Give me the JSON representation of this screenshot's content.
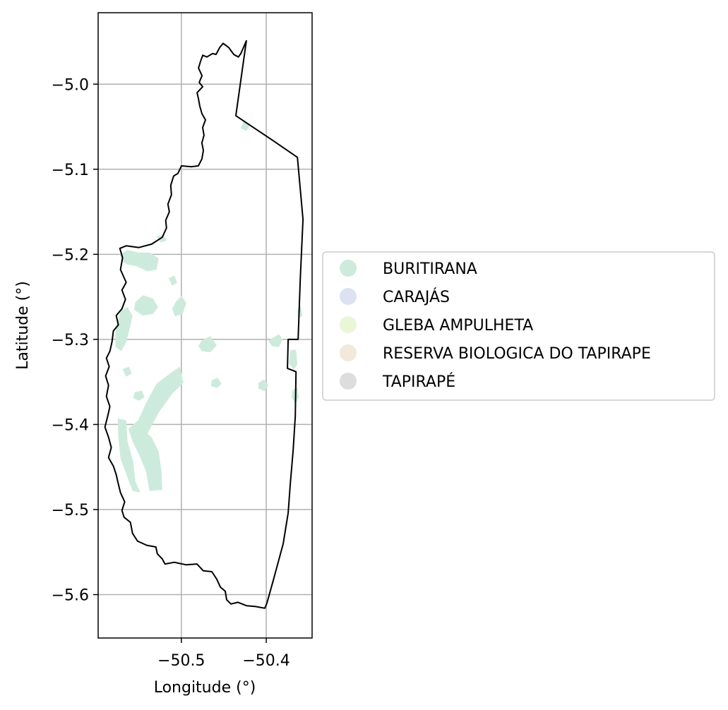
{
  "chart_data": {
    "type": "map",
    "xlabel": "Longitude (°)",
    "ylabel": "Latitude (°)",
    "xlim": [
      -50.598,
      -50.346
    ],
    "ylim": [
      -5.651,
      -4.916
    ],
    "xticks": [
      {
        "value": -50.5,
        "label": "−50.5"
      },
      {
        "value": -50.4,
        "label": "−50.4"
      }
    ],
    "yticks": [
      {
        "value": -5.0,
        "label": "−5.0"
      },
      {
        "value": -5.1,
        "label": "−5.1"
      },
      {
        "value": -5.2,
        "label": "−5.2"
      },
      {
        "value": -5.3,
        "label": "−5.3"
      },
      {
        "value": -5.4,
        "label": "−5.4"
      },
      {
        "value": -5.5,
        "label": "−5.5"
      },
      {
        "value": -5.6,
        "label": "−5.6"
      }
    ],
    "grid": true,
    "legend_position": "right",
    "legend": [
      {
        "label": "BURITIRANA",
        "color": "#cdebdc"
      },
      {
        "label": "CARAJÁS",
        "color": "#dde2f2"
      },
      {
        "label": "GLEBA AMPULHETA",
        "color": "#e9f7d8"
      },
      {
        "label": "RESERVA BIOLOGICA DO TAPIRAPE",
        "color": "#f3e9da"
      },
      {
        "label": "TAPIRAPÉ",
        "color": "#dddddd"
      }
    ],
    "boundary": [
      [
        -50.4234,
        -4.949
      ],
      [
        -50.4299,
        -4.964
      ],
      [
        -50.4328,
        -4.968
      ],
      [
        -50.4383,
        -4.965
      ],
      [
        -50.4441,
        -4.957
      ],
      [
        -50.4508,
        -4.952
      ],
      [
        -50.4549,
        -4.957
      ],
      [
        -50.4591,
        -4.965
      ],
      [
        -50.4632,
        -4.964
      ],
      [
        -50.4699,
        -4.968
      ],
      [
        -50.4748,
        -4.966
      ],
      [
        -50.4773,
        -4.973
      ],
      [
        -50.4798,
        -4.981
      ],
      [
        -50.4757,
        -4.99
      ],
      [
        -50.479,
        -4.998
      ],
      [
        -50.4749,
        -5.003
      ],
      [
        -50.4815,
        -5.01
      ],
      [
        -50.4799,
        -5.017
      ],
      [
        -50.4782,
        -5.026
      ],
      [
        -50.4757,
        -5.035
      ],
      [
        -50.4716,
        -5.042
      ],
      [
        -50.4749,
        -5.051
      ],
      [
        -50.4733,
        -5.06
      ],
      [
        -50.4758,
        -5.069
      ],
      [
        -50.4741,
        -5.078
      ],
      [
        -50.4758,
        -5.088
      ],
      [
        -50.48,
        -5.096
      ],
      [
        -50.4883,
        -5.097
      ],
      [
        -50.4999,
        -5.096
      ],
      [
        -50.5041,
        -5.105
      ],
      [
        -50.5091,
        -5.108
      ],
      [
        -50.5125,
        -5.119
      ],
      [
        -50.5117,
        -5.13
      ],
      [
        -50.5158,
        -5.141
      ],
      [
        -50.5142,
        -5.15
      ],
      [
        -50.5184,
        -5.16
      ],
      [
        -50.5175,
        -5.169
      ],
      [
        -50.5225,
        -5.18
      ],
      [
        -50.535,
        -5.188
      ],
      [
        -50.55,
        -5.192
      ],
      [
        -50.565,
        -5.19
      ],
      [
        -50.5725,
        -5.193
      ],
      [
        -50.5692,
        -5.204
      ],
      [
        -50.5717,
        -5.218
      ],
      [
        -50.565,
        -5.233
      ],
      [
        -50.57,
        -5.242
      ],
      [
        -50.5658,
        -5.253
      ],
      [
        -50.57,
        -5.264
      ],
      [
        -50.5767,
        -5.272
      ],
      [
        -50.5742,
        -5.283
      ],
      [
        -50.58,
        -5.29
      ],
      [
        -50.5817,
        -5.303
      ],
      [
        -50.5842,
        -5.314
      ],
      [
        -50.5883,
        -5.322
      ],
      [
        -50.585,
        -5.332
      ],
      [
        -50.5892,
        -5.343
      ],
      [
        -50.5858,
        -5.354
      ],
      [
        -50.5883,
        -5.367
      ],
      [
        -50.5842,
        -5.379
      ],
      [
        -50.5867,
        -5.39
      ],
      [
        -50.59,
        -5.403
      ],
      [
        -50.5858,
        -5.415
      ],
      [
        -50.5825,
        -5.427
      ],
      [
        -50.5858,
        -5.439
      ],
      [
        -50.58,
        -5.449
      ],
      [
        -50.5767,
        -5.459
      ],
      [
        -50.5742,
        -5.47
      ],
      [
        -50.5717,
        -5.48
      ],
      [
        -50.5667,
        -5.491
      ],
      [
        -50.57,
        -5.501
      ],
      [
        -50.5675,
        -5.509
      ],
      [
        -50.56,
        -5.515
      ],
      [
        -50.5575,
        -5.528
      ],
      [
        -50.5517,
        -5.537
      ],
      [
        -50.5408,
        -5.542
      ],
      [
        -50.53,
        -5.544
      ],
      [
        -50.5283,
        -5.552
      ],
      [
        -50.5225,
        -5.558
      ],
      [
        -50.5192,
        -5.564
      ],
      [
        -50.5083,
        -5.562
      ],
      [
        -50.4942,
        -5.565
      ],
      [
        -50.4817,
        -5.564
      ],
      [
        -50.4741,
        -5.572
      ],
      [
        -50.4641,
        -5.573
      ],
      [
        -50.4582,
        -5.582
      ],
      [
        -50.4541,
        -5.591
      ],
      [
        -50.4483,
        -5.596
      ],
      [
        -50.4466,
        -5.606
      ],
      [
        -50.4416,
        -5.611
      ],
      [
        -50.4333,
        -5.609
      ],
      [
        -50.4233,
        -5.613
      ],
      [
        -50.4125,
        -5.614
      ],
      [
        -50.4017,
        -5.616
      ],
      [
        -50.3992,
        -5.61
      ],
      [
        -50.3908,
        -5.58
      ],
      [
        -50.38,
        -5.54
      ],
      [
        -50.3742,
        -5.504
      ],
      [
        -50.3717,
        -5.47
      ],
      [
        -50.3683,
        -5.43
      ],
      [
        -50.3658,
        -5.39
      ],
      [
        -50.365,
        -5.338
      ],
      [
        -50.375,
        -5.334
      ],
      [
        -50.3742,
        -5.3
      ],
      [
        -50.3625,
        -5.3
      ],
      [
        -50.36,
        -5.23
      ],
      [
        -50.3567,
        -5.159
      ],
      [
        -50.3633,
        -5.086
      ],
      [
        -50.3925,
        -5.066
      ],
      [
        -50.4225,
        -5.046
      ],
      [
        -50.4358,
        -5.037
      ],
      [
        -50.4234,
        -4.949
      ]
    ],
    "areas": [
      [
        [
          -50.5625,
          -5.405
        ],
        [
          -50.5508,
          -5.395
        ],
        [
          -50.5417,
          -5.375
        ],
        [
          -50.5292,
          -5.352
        ],
        [
          -50.5133,
          -5.34
        ],
        [
          -50.5017,
          -5.332
        ],
        [
          -50.4975,
          -5.351
        ],
        [
          -50.5108,
          -5.364
        ],
        [
          -50.5267,
          -5.386
        ],
        [
          -50.54,
          -5.411
        ],
        [
          -50.535,
          -5.415
        ],
        [
          -50.5267,
          -5.432
        ],
        [
          -50.5233,
          -5.455
        ],
        [
          -50.5225,
          -5.477
        ],
        [
          -50.5375,
          -5.478
        ],
        [
          -50.5417,
          -5.455
        ],
        [
          -50.55,
          -5.435
        ],
        [
          -50.5567,
          -5.422
        ]
      ],
      [
        [
          -50.575,
          -5.393
        ],
        [
          -50.565,
          -5.395
        ],
        [
          -50.5633,
          -5.42
        ],
        [
          -50.5567,
          -5.444
        ],
        [
          -50.5542,
          -5.467
        ],
        [
          -50.5483,
          -5.48
        ],
        [
          -50.5575,
          -5.478
        ],
        [
          -50.565,
          -5.458
        ],
        [
          -50.5717,
          -5.44
        ],
        [
          -50.5742,
          -5.415
        ]
      ],
      [
        [
          -50.5717,
          -5.266
        ],
        [
          -50.5633,
          -5.262
        ],
        [
          -50.5575,
          -5.272
        ],
        [
          -50.56,
          -5.284
        ],
        [
          -50.565,
          -5.303
        ],
        [
          -50.5708,
          -5.314
        ],
        [
          -50.5775,
          -5.309
        ],
        [
          -50.5775,
          -5.29
        ]
      ],
      [
        [
          -50.5725,
          -5.2
        ],
        [
          -50.5633,
          -5.195
        ],
        [
          -50.55,
          -5.198
        ],
        [
          -50.5367,
          -5.198
        ],
        [
          -50.5267,
          -5.205
        ],
        [
          -50.5292,
          -5.218
        ],
        [
          -50.54,
          -5.22
        ],
        [
          -50.5525,
          -5.214
        ],
        [
          -50.5642,
          -5.212
        ],
        [
          -50.57,
          -5.208
        ]
      ],
      [
        [
          -50.5542,
          -5.256
        ],
        [
          -50.545,
          -5.248
        ],
        [
          -50.5333,
          -5.252
        ],
        [
          -50.5275,
          -5.262
        ],
        [
          -50.5333,
          -5.27
        ],
        [
          -50.5458,
          -5.272
        ],
        [
          -50.5558,
          -5.265
        ]
      ],
      [
        [
          -50.5067,
          -5.256
        ],
        [
          -50.5,
          -5.249
        ],
        [
          -50.4942,
          -5.257
        ],
        [
          -50.4983,
          -5.27
        ],
        [
          -50.5075,
          -5.273
        ],
        [
          -50.5108,
          -5.264
        ]
      ],
      [
        [
          -50.4758,
          -5.301
        ],
        [
          -50.4658,
          -5.296
        ],
        [
          -50.4583,
          -5.307
        ],
        [
          -50.4658,
          -5.315
        ],
        [
          -50.4758,
          -5.314
        ],
        [
          -50.48,
          -5.308
        ]
      ],
      [
        [
          -50.3925,
          -5.298
        ],
        [
          -50.385,
          -5.294
        ],
        [
          -50.3808,
          -5.3
        ],
        [
          -50.385,
          -5.309
        ],
        [
          -50.3933,
          -5.308
        ],
        [
          -50.3975,
          -5.302
        ]
      ],
      [
        [
          -50.3717,
          -5.313
        ],
        [
          -50.365,
          -5.312
        ],
        [
          -50.3633,
          -5.329
        ],
        [
          -50.3675,
          -5.336
        ],
        [
          -50.3733,
          -5.328
        ]
      ],
      [
        [
          -50.3692,
          -5.36
        ],
        [
          -50.3633,
          -5.356
        ],
        [
          -50.3617,
          -5.368
        ],
        [
          -50.3658,
          -5.376
        ],
        [
          -50.37,
          -5.368
        ]
      ],
      [
        [
          -50.3633,
          -5.265
        ],
        [
          -50.3592,
          -5.261
        ],
        [
          -50.3575,
          -5.272
        ],
        [
          -50.3625,
          -5.276
        ]
      ],
      [
        [
          -50.4092,
          -5.351
        ],
        [
          -50.4025,
          -5.347
        ],
        [
          -50.3975,
          -5.354
        ],
        [
          -50.4017,
          -5.361
        ],
        [
          -50.4092,
          -5.358
        ]
      ],
      [
        [
          -50.4642,
          -5.348
        ],
        [
          -50.4575,
          -5.345
        ],
        [
          -50.4525,
          -5.352
        ],
        [
          -50.4575,
          -5.357
        ],
        [
          -50.465,
          -5.355
        ]
      ],
      [
        [
          -50.555,
          -5.362
        ],
        [
          -50.5467,
          -5.36
        ],
        [
          -50.5433,
          -5.368
        ],
        [
          -50.55,
          -5.372
        ],
        [
          -50.5567,
          -5.369
        ]
      ],
      [
        [
          -50.5692,
          -5.335
        ],
        [
          -50.5617,
          -5.332
        ],
        [
          -50.5583,
          -5.34
        ],
        [
          -50.565,
          -5.344
        ]
      ],
      [
        [
          -50.4267,
          -5.044
        ],
        [
          -50.4192,
          -5.048
        ],
        [
          -50.4233,
          -5.055
        ],
        [
          -50.43,
          -5.052
        ]
      ],
      [
        [
          -50.5292,
          -5.179
        ],
        [
          -50.5208,
          -5.177
        ],
        [
          -50.5175,
          -5.184
        ],
        [
          -50.5242,
          -5.186
        ]
      ],
      [
        [
          -50.515,
          -5.228
        ],
        [
          -50.5083,
          -5.225
        ],
        [
          -50.505,
          -5.233
        ],
        [
          -50.5108,
          -5.237
        ]
      ]
    ]
  }
}
